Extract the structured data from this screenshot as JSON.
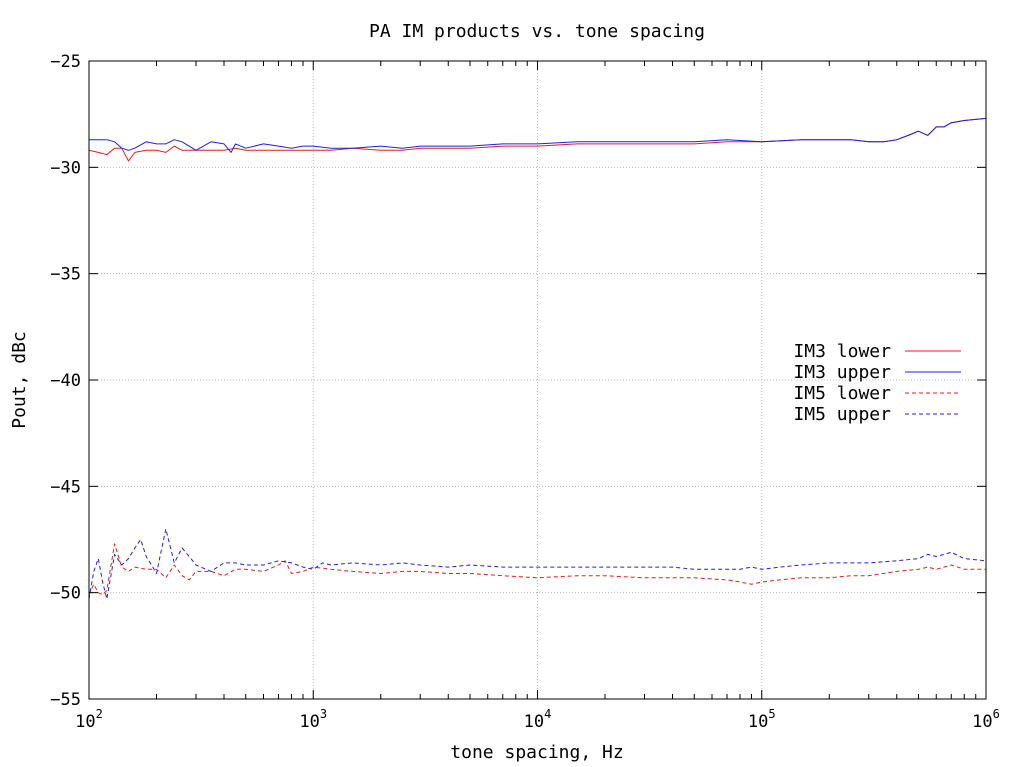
{
  "chart_data": {
    "type": "line",
    "title": "PA IM products vs. tone spacing",
    "xlabel": "tone spacing, Hz",
    "ylabel": "Pout, dBc",
    "xscale": "log",
    "xlim": [
      100,
      1000000
    ],
    "ylim": [
      -55,
      -25
    ],
    "yticks": [
      -55,
      -50,
      -45,
      -40,
      -35,
      -30,
      -25
    ],
    "xticks": [
      {
        "value": 100,
        "base": "10",
        "exp": "2"
      },
      {
        "value": 1000,
        "base": "10",
        "exp": "3"
      },
      {
        "value": 10000,
        "base": "10",
        "exp": "4"
      },
      {
        "value": 100000,
        "base": "10",
        "exp": "5"
      },
      {
        "value": 1000000,
        "base": "10",
        "exp": "6"
      }
    ],
    "grid": true,
    "legend_position": "right",
    "series": [
      {
        "name": "IM3 lower",
        "color": "#e02020",
        "dash": "solid",
        "x": [
          100,
          110,
          120,
          130,
          140,
          150,
          160,
          180,
          200,
          220,
          240,
          260,
          300,
          350,
          400,
          450,
          500,
          600,
          700,
          800,
          900,
          1000,
          1200,
          1500,
          2000,
          2500,
          3000,
          4000,
          5000,
          7000,
          10000,
          15000,
          20000,
          30000,
          40000,
          50000,
          70000,
          100000,
          150000,
          200000,
          250000,
          300000,
          350000,
          400000,
          450000,
          500000,
          550000,
          600000,
          650000,
          700000,
          800000,
          1000000
        ],
        "values": [
          -29.2,
          -29.3,
          -29.4,
          -29.1,
          -29.1,
          -29.7,
          -29.3,
          -29.2,
          -29.2,
          -29.3,
          -29.0,
          -29.2,
          -29.2,
          -29.2,
          -29.2,
          -29.1,
          -29.2,
          -29.2,
          -29.2,
          -29.2,
          -29.2,
          -29.2,
          -29.2,
          -29.1,
          -29.2,
          -29.2,
          -29.1,
          -29.1,
          -29.1,
          -29.0,
          -29.0,
          -28.9,
          -28.9,
          -28.9,
          -28.9,
          -28.9,
          -28.8,
          -28.8,
          -28.7,
          -28.7,
          -28.7,
          -28.8,
          -28.8,
          -28.7,
          -28.5,
          -28.3,
          -28.5,
          -28.1,
          -28.1,
          -27.9,
          -27.8,
          -27.7
        ]
      },
      {
        "name": "IM3 upper",
        "color": "#2020e0",
        "dash": "solid",
        "x": [
          100,
          110,
          120,
          130,
          140,
          150,
          160,
          180,
          200,
          220,
          240,
          260,
          300,
          350,
          400,
          430,
          450,
          500,
          600,
          700,
          800,
          900,
          1000,
          1200,
          1500,
          2000,
          2500,
          3000,
          4000,
          5000,
          7000,
          10000,
          15000,
          20000,
          30000,
          40000,
          50000,
          70000,
          100000,
          150000,
          200000,
          250000,
          300000,
          350000,
          400000,
          450000,
          500000,
          550000,
          600000,
          650000,
          700000,
          800000,
          1000000
        ],
        "values": [
          -28.7,
          -28.7,
          -28.7,
          -28.8,
          -29.1,
          -29.2,
          -29.1,
          -28.8,
          -28.9,
          -28.9,
          -28.7,
          -28.8,
          -29.2,
          -28.8,
          -28.9,
          -29.3,
          -28.9,
          -29.1,
          -28.9,
          -29.0,
          -29.1,
          -29.0,
          -29.0,
          -29.1,
          -29.1,
          -29.0,
          -29.1,
          -29.0,
          -29.0,
          -29.0,
          -28.9,
          -28.9,
          -28.8,
          -28.8,
          -28.8,
          -28.8,
          -28.8,
          -28.7,
          -28.8,
          -28.7,
          -28.7,
          -28.7,
          -28.8,
          -28.8,
          -28.7,
          -28.5,
          -28.3,
          -28.5,
          -28.1,
          -28.1,
          -27.9,
          -27.8,
          -27.7
        ]
      },
      {
        "name": "IM5 lower",
        "color": "#e02020",
        "dash": "dashed",
        "x": [
          100,
          105,
          110,
          115,
          120,
          130,
          140,
          150,
          160,
          180,
          200,
          220,
          240,
          260,
          280,
          300,
          350,
          400,
          450,
          500,
          600,
          700,
          750,
          800,
          900,
          1000,
          1200,
          1500,
          2000,
          2500,
          3000,
          4000,
          5000,
          7000,
          10000,
          15000,
          20000,
          30000,
          40000,
          50000,
          70000,
          80000,
          90000,
          100000,
          120000,
          150000,
          200000,
          250000,
          300000,
          400000,
          500000,
          550000,
          600000,
          700000,
          800000,
          1000000
        ],
        "values": [
          -50.1,
          -49.6,
          -50.0,
          -50.1,
          -49.9,
          -47.7,
          -48.8,
          -49.0,
          -48.8,
          -48.9,
          -48.9,
          -49.3,
          -48.7,
          -49.2,
          -49.4,
          -49.0,
          -49.0,
          -49.2,
          -48.9,
          -48.9,
          -49.0,
          -48.7,
          -48.5,
          -49.1,
          -49.0,
          -48.8,
          -48.9,
          -49.0,
          -49.1,
          -49.0,
          -49.0,
          -49.1,
          -49.1,
          -49.2,
          -49.3,
          -49.2,
          -49.2,
          -49.3,
          -49.3,
          -49.3,
          -49.4,
          -49.5,
          -49.6,
          -49.5,
          -49.4,
          -49.3,
          -49.3,
          -49.2,
          -49.2,
          -49.0,
          -48.9,
          -48.8,
          -48.9,
          -48.7,
          -48.9,
          -48.9
        ]
      },
      {
        "name": "IM5 upper",
        "color": "#2020e0",
        "dash": "dashed",
        "x": [
          100,
          105,
          110,
          115,
          120,
          130,
          140,
          150,
          160,
          170,
          180,
          190,
          200,
          220,
          240,
          260,
          280,
          300,
          350,
          400,
          450,
          500,
          600,
          700,
          800,
          900,
          1000,
          1100,
          1200,
          1500,
          2000,
          2500,
          3000,
          4000,
          5000,
          7000,
          10000,
          15000,
          20000,
          30000,
          40000,
          50000,
          70000,
          80000,
          90000,
          100000,
          120000,
          150000,
          200000,
          250000,
          300000,
          400000,
          500000,
          550000,
          600000,
          650000,
          700000,
          800000,
          1000000
        ],
        "values": [
          -50.3,
          -49.0,
          -48.4,
          -49.5,
          -50.3,
          -48.2,
          -48.7,
          -48.4,
          -47.9,
          -47.5,
          -48.3,
          -48.7,
          -49.1,
          -47.0,
          -48.6,
          -47.9,
          -48.3,
          -48.7,
          -49.0,
          -48.6,
          -48.6,
          -48.7,
          -48.7,
          -48.5,
          -48.6,
          -48.8,
          -48.9,
          -48.6,
          -48.7,
          -48.6,
          -48.7,
          -48.6,
          -48.7,
          -48.8,
          -48.7,
          -48.8,
          -48.8,
          -48.8,
          -48.8,
          -48.8,
          -48.8,
          -48.9,
          -48.9,
          -48.9,
          -48.8,
          -48.9,
          -48.8,
          -48.7,
          -48.6,
          -48.6,
          -48.6,
          -48.5,
          -48.4,
          -48.2,
          -48.3,
          -48.2,
          -48.1,
          -48.4,
          -48.5
        ]
      }
    ]
  }
}
